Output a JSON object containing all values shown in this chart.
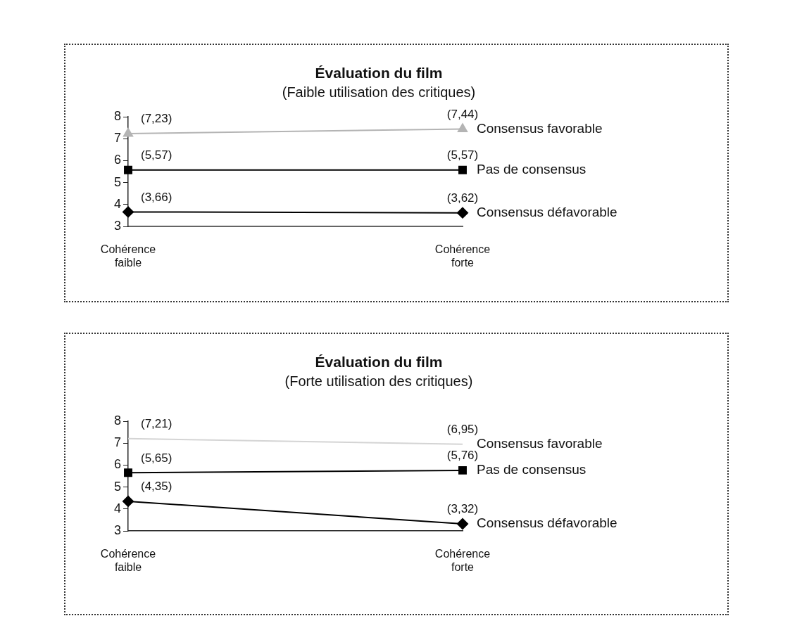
{
  "chart_data": [
    {
      "type": "line",
      "title": "Évaluation du film",
      "subtitle": "(Faible utilisation des critiques)",
      "categories": [
        "Cohérence faible",
        "Cohérence forte"
      ],
      "series": [
        {
          "name": "Consensus favorable",
          "color": "#b4b4b4",
          "marker": "triangle",
          "values": [
            7.23,
            7.44
          ],
          "value_labels": [
            "(7,23)",
            "(7,44)"
          ]
        },
        {
          "name": "Pas de consensus",
          "color": "#000000",
          "marker": "square",
          "values": [
            5.57,
            5.57
          ],
          "value_labels": [
            "(5,57)",
            "(5,57)"
          ]
        },
        {
          "name": "Consensus défavorable",
          "color": "#000000",
          "marker": "diamond",
          "values": [
            3.66,
            3.62
          ],
          "value_labels": [
            "(3,66)",
            "(3,62)"
          ]
        }
      ],
      "ylim": [
        3,
        8
      ],
      "yticks": [
        3,
        4,
        5,
        6,
        7,
        8
      ]
    },
    {
      "type": "line",
      "title": "Évaluation du film",
      "subtitle": "(Forte utilisation des critiques)",
      "categories": [
        "Cohérence faible",
        "Cohérence forte"
      ],
      "series": [
        {
          "name": "Consensus favorable",
          "color": "#d4d4d4",
          "marker": "none",
          "values": [
            7.21,
            6.95
          ],
          "value_labels": [
            "(7,21)",
            "(6,95)"
          ]
        },
        {
          "name": "Pas de consensus",
          "color": "#000000",
          "marker": "square",
          "values": [
            5.65,
            5.76
          ],
          "value_labels": [
            "(5,65)",
            "(5,76)"
          ]
        },
        {
          "name": "Consensus défavorable",
          "color": "#000000",
          "marker": "diamond",
          "values": [
            4.35,
            3.32
          ],
          "value_labels": [
            "(4,35)",
            "(3,32)"
          ]
        }
      ],
      "ylim": [
        3,
        8
      ],
      "yticks": [
        3,
        4,
        5,
        6,
        7,
        8
      ]
    }
  ]
}
